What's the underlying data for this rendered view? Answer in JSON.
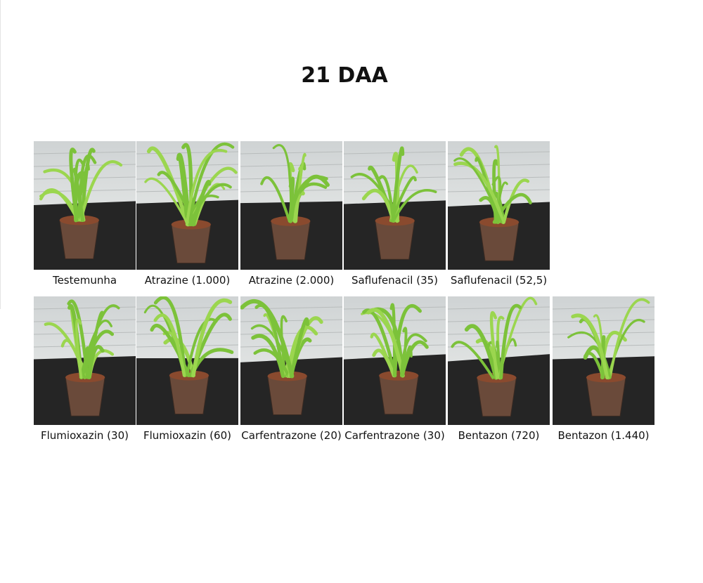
{
  "title": "21 DAA",
  "rows": [
    [
      "Testemunha",
      "Atrazine (1.000)",
      "Atrazine (2.000)",
      "Saflufenacil (35)",
      "Saflufenacil (52,5)"
    ],
    [
      "Flumioxazin (30)",
      "Flumioxazin (60)",
      "Carfentrazone (20)",
      "Carfentrazone (30)",
      "Bentazon (720)",
      "Bentazon (1.440)"
    ]
  ]
}
